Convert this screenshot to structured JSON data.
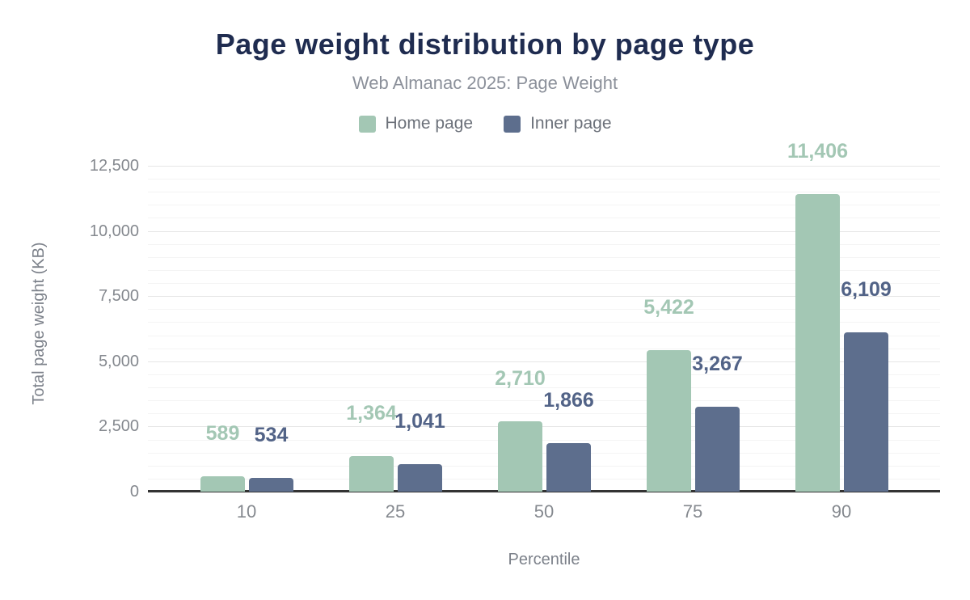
{
  "header": {
    "title": "Page weight distribution by page type",
    "subtitle": "Web Almanac 2025: Page Weight"
  },
  "chart_data": {
    "type": "bar",
    "title": "Page weight distribution by page type",
    "subtitle": "Web Almanac 2025: Page Weight",
    "categories": [
      "10",
      "25",
      "50",
      "75",
      "90"
    ],
    "series": [
      {
        "name": "Home page",
        "color": "#a3c7b4",
        "label_color": "#a3c7b4",
        "values": [
          589,
          1364,
          2710,
          5422,
          11406
        ],
        "labels": [
          "589",
          "1,364",
          "2,710",
          "5,422",
          "11,406"
        ]
      },
      {
        "name": "Inner page",
        "color": "#5d6e8d",
        "label_color": "#526387",
        "values": [
          534,
          1041,
          1866,
          3267,
          6109
        ],
        "labels": [
          "534",
          "1,041",
          "1,866",
          "3,267",
          "6,109"
        ]
      }
    ],
    "xlabel": "Percentile",
    "ylabel": "Total page weight (KB)",
    "ylim": [
      0,
      12500
    ],
    "yticks": [
      0,
      2500,
      5000,
      7500,
      10000,
      12500
    ],
    "ytick_labels": [
      "0",
      "2,500",
      "5,000",
      "7,500",
      "10,000",
      "12,500"
    ],
    "minor_grid_step": 500,
    "grid": true,
    "legend_position": "top"
  },
  "colors": {
    "title": "#1f2c50",
    "subtitle": "#8b909a",
    "legend_label": "#6c717a",
    "tick_label": "#85898f",
    "axis_title": "#7c818a",
    "axis_line": "#333333",
    "grid_major": "#e6e6e6",
    "grid_minor": "#f4f4f4",
    "background": "#ffffff"
  }
}
